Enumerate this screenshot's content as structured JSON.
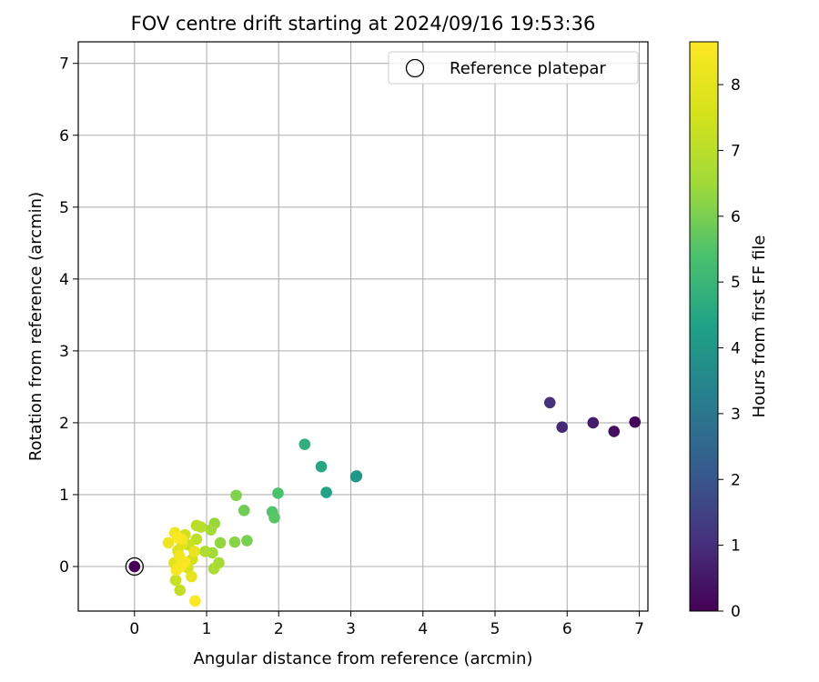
{
  "chart_data": {
    "type": "scatter",
    "title": "FOV centre drift starting at 2024/09/16 19:53:36",
    "xlabel": "Angular distance from reference (arcmin)",
    "ylabel": "Rotation from reference (arcmin)",
    "xlim": [
      -0.78,
      7.12
    ],
    "ylim": [
      -0.62,
      7.3
    ],
    "xticks": [
      "0",
      "1",
      "2",
      "3",
      "4",
      "5",
      "6",
      "7"
    ],
    "yticks": [
      "0",
      "1",
      "2",
      "3",
      "4",
      "5",
      "6",
      "7"
    ],
    "grid": true,
    "legend": {
      "placement": "top-right",
      "entries": [
        "Reference platepar"
      ]
    },
    "reference_point": {
      "x": 0,
      "y": 0,
      "hours": 0
    },
    "colorbar": {
      "label": "Hours from first FF file",
      "range": [
        0,
        8.65
      ],
      "ticks": [
        "0",
        "1",
        "2",
        "3",
        "4",
        "5",
        "6",
        "7",
        "8"
      ],
      "colormap": "viridis"
    },
    "points": [
      {
        "x": 6.94,
        "y": 2.01,
        "hours": 0.1
      },
      {
        "x": 6.65,
        "y": 1.88,
        "hours": 0.3
      },
      {
        "x": 6.36,
        "y": 2.0,
        "hours": 0.6
      },
      {
        "x": 5.93,
        "y": 1.94,
        "hours": 0.85
      },
      {
        "x": 5.76,
        "y": 2.28,
        "hours": 1.05
      },
      {
        "x": 3.08,
        "y": 1.26,
        "hours": 3.9
      },
      {
        "x": 3.07,
        "y": 1.25,
        "hours": 4.0
      },
      {
        "x": 2.66,
        "y": 1.03,
        "hours": 4.4
      },
      {
        "x": 2.59,
        "y": 1.39,
        "hours": 4.5
      },
      {
        "x": 2.36,
        "y": 1.7,
        "hours": 4.8
      },
      {
        "x": 1.99,
        "y": 1.02,
        "hours": 5.4
      },
      {
        "x": 1.91,
        "y": 0.76,
        "hours": 5.5
      },
      {
        "x": 1.94,
        "y": 0.68,
        "hours": 5.6
      },
      {
        "x": 1.52,
        "y": 0.78,
        "hours": 5.9
      },
      {
        "x": 1.41,
        "y": 0.99,
        "hours": 6.1
      },
      {
        "x": 1.56,
        "y": 0.36,
        "hours": 6.0
      },
      {
        "x": 1.39,
        "y": 0.34,
        "hours": 6.2
      },
      {
        "x": 1.19,
        "y": 0.33,
        "hours": 6.3
      },
      {
        "x": 1.11,
        "y": 0.6,
        "hours": 6.4
      },
      {
        "x": 1.06,
        "y": 0.51,
        "hours": 6.5
      },
      {
        "x": 1.08,
        "y": 0.19,
        "hours": 6.5
      },
      {
        "x": 1.17,
        "y": 0.05,
        "hours": 6.6
      },
      {
        "x": 1.1,
        "y": -0.03,
        "hours": 6.7
      },
      {
        "x": 0.98,
        "y": 0.21,
        "hours": 6.8
      },
      {
        "x": 0.92,
        "y": 0.55,
        "hours": 6.9
      },
      {
        "x": 0.86,
        "y": 0.57,
        "hours": 7.0
      },
      {
        "x": 0.86,
        "y": 0.38,
        "hours": 7.1
      },
      {
        "x": 0.63,
        "y": -0.33,
        "hours": 7.2
      },
      {
        "x": 0.57,
        "y": -0.19,
        "hours": 7.3
      },
      {
        "x": 0.75,
        "y": 0.3,
        "hours": 7.3
      },
      {
        "x": 0.7,
        "y": 0.44,
        "hours": 7.4
      },
      {
        "x": 0.8,
        "y": 0.1,
        "hours": 7.5
      },
      {
        "x": 0.74,
        "y": -0.02,
        "hours": 7.6
      },
      {
        "x": 0.6,
        "y": 0.22,
        "hours": 7.7
      },
      {
        "x": 0.66,
        "y": 0.31,
        "hours": 7.8
      },
      {
        "x": 0.55,
        "y": 0.05,
        "hours": 7.9
      },
      {
        "x": 0.79,
        "y": -0.14,
        "hours": 8.0
      },
      {
        "x": 0.83,
        "y": 0.21,
        "hours": 8.1
      },
      {
        "x": 0.47,
        "y": 0.33,
        "hours": 8.2
      },
      {
        "x": 0.56,
        "y": 0.47,
        "hours": 8.3
      },
      {
        "x": 0.62,
        "y": 0.15,
        "hours": 8.35
      },
      {
        "x": 0.66,
        "y": 0.38,
        "hours": 8.4
      },
      {
        "x": 0.58,
        "y": -0.05,
        "hours": 8.45
      },
      {
        "x": 0.7,
        "y": 0.06,
        "hours": 8.5
      },
      {
        "x": 0.64,
        "y": 0.0,
        "hours": 8.55
      },
      {
        "x": 0.84,
        "y": -0.48,
        "hours": 8.6
      },
      {
        "x": 0.6,
        "y": 0.4,
        "hours": 8.6
      }
    ]
  }
}
